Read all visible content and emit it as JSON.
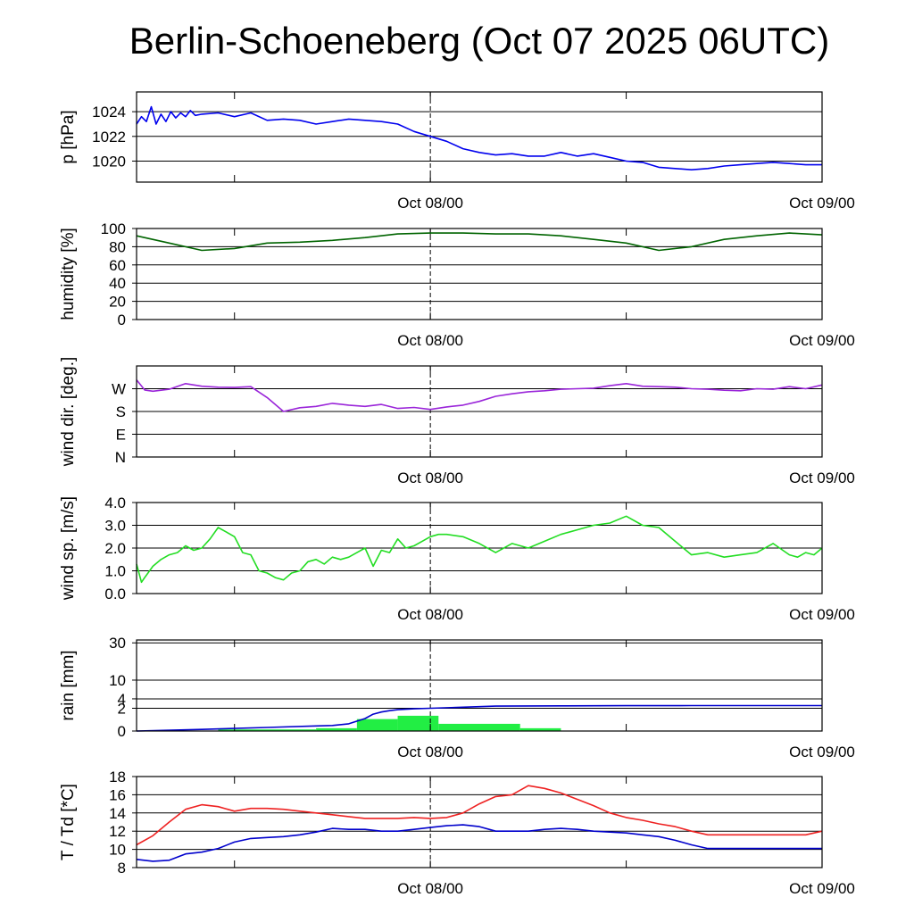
{
  "title": "Berlin-Schoeneberg (Oct 07 2025 06UTC)",
  "x_tick_labels": [
    "Oct 08/00",
    "Oct 09/00"
  ],
  "chart_data": [
    {
      "id": "pressure",
      "type": "line",
      "ylabel": "p [hPa]",
      "ylim": [
        1018.3,
        1025.6
      ],
      "yticks": [
        1020,
        1022,
        1024
      ],
      "ytick_labels": [
        "1020",
        "1022",
        "1024"
      ],
      "series": [
        {
          "name": "pressure",
          "color": "#0000ee",
          "x": [
            0,
            0.3,
            0.6,
            0.9,
            1.2,
            1.5,
            1.8,
            2.1,
            2.4,
            2.7,
            3.0,
            3.3,
            3.6,
            4,
            5,
            6,
            7,
            8,
            9,
            10,
            11,
            12,
            13,
            14,
            15,
            16,
            17,
            18,
            19,
            20,
            21,
            22,
            23,
            24,
            25,
            26,
            27,
            28,
            29,
            30,
            31,
            32,
            33,
            34,
            35,
            36,
            37,
            38,
            39,
            40,
            41,
            42
          ],
          "y": [
            1023.0,
            1023.6,
            1023.2,
            1024.4,
            1023.0,
            1023.8,
            1023.2,
            1024.0,
            1023.5,
            1023.9,
            1023.6,
            1024.1,
            1023.7,
            1023.8,
            1023.9,
            1023.6,
            1023.9,
            1023.3,
            1023.4,
            1023.3,
            1023.0,
            1023.2,
            1023.4,
            1023.3,
            1023.2,
            1023.0,
            1022.4,
            1022.0,
            1021.6,
            1021.0,
            1020.7,
            1020.5,
            1020.6,
            1020.4,
            1020.4,
            1020.7,
            1020.4,
            1020.6,
            1020.3,
            1020.0,
            1019.9,
            1019.5,
            1019.4,
            1019.3,
            1019.4,
            1019.6,
            1019.7,
            1019.8,
            1019.9,
            1019.8,
            1019.7,
            1019.7
          ]
        }
      ]
    },
    {
      "id": "humidity",
      "type": "line",
      "ylabel": "humidity [%]",
      "ylim": [
        0,
        100
      ],
      "yticks": [
        0,
        20,
        40,
        60,
        80,
        100
      ],
      "ytick_labels": [
        "0",
        "20",
        "40",
        "60",
        "80",
        "100"
      ],
      "series": [
        {
          "name": "humidity",
          "color": "#006400",
          "x": [
            0,
            2,
            4,
            6,
            8,
            10,
            12,
            14,
            16,
            18,
            20,
            22,
            24,
            26,
            28,
            30,
            32,
            34,
            36,
            38,
            40,
            42
          ],
          "y": [
            92,
            84,
            76,
            78,
            84,
            85,
            87,
            90,
            94,
            95,
            95,
            94,
            94,
            92,
            88,
            84,
            76,
            80,
            88,
            92,
            95,
            93
          ]
        }
      ]
    },
    {
      "id": "wind_direction",
      "type": "line",
      "ylabel": "wind dir. [deg.]",
      "ylim": [
        0,
        360
      ],
      "yticks": [
        0,
        90,
        180,
        270
      ],
      "ytick_labels": [
        "N",
        "E",
        "S",
        "W"
      ],
      "series": [
        {
          "name": "wind direction",
          "color": "#9a25d9",
          "x": [
            0,
            0.5,
            1,
            2,
            3,
            4,
            5,
            6,
            7,
            8,
            9,
            10,
            11,
            12,
            13,
            14,
            15,
            16,
            17,
            18,
            19,
            20,
            21,
            22,
            23,
            24,
            25,
            26,
            27,
            28,
            29,
            30,
            31,
            32,
            33,
            34,
            35,
            36,
            37,
            38,
            39,
            40,
            41,
            42
          ],
          "y": [
            305,
            265,
            260,
            268,
            290,
            280,
            276,
            275,
            278,
            235,
            180,
            195,
            200,
            212,
            205,
            200,
            208,
            192,
            196,
            188,
            198,
            205,
            220,
            240,
            250,
            258,
            262,
            268,
            270,
            272,
            282,
            290,
            280,
            278,
            276,
            270,
            268,
            264,
            262,
            270,
            268,
            278,
            270,
            285
          ]
        }
      ]
    },
    {
      "id": "wind_speed",
      "type": "line",
      "ylabel": "wind sp. [m/s]",
      "ylim": [
        0,
        4.0
      ],
      "yticks": [
        0,
        1,
        2,
        3,
        4
      ],
      "ytick_labels": [
        "0.0",
        "1.0",
        "2.0",
        "3.0",
        "4.0"
      ],
      "series": [
        {
          "name": "wind speed",
          "color": "#22dd22",
          "x": [
            0,
            0.3,
            0.5,
            0.8,
            1,
            1.5,
            2,
            2.5,
            3,
            3.5,
            4,
            4.5,
            5,
            5.5,
            6,
            6.5,
            7,
            7.5,
            8,
            8.5,
            9,
            9.5,
            10,
            10.5,
            11,
            11.5,
            12,
            12.5,
            13,
            13.5,
            14,
            14.5,
            15,
            15.5,
            16,
            16.5,
            17,
            17.5,
            18,
            18.5,
            19,
            20,
            21,
            22,
            23,
            24,
            25,
            26,
            27,
            28,
            29,
            30,
            31,
            32,
            33,
            34,
            35,
            36,
            37,
            38,
            39,
            40,
            40.5,
            41,
            41.5,
            42
          ],
          "y": [
            1.3,
            0.5,
            0.7,
            1.0,
            1.2,
            1.5,
            1.7,
            1.8,
            2.1,
            1.9,
            2.0,
            2.4,
            2.9,
            2.7,
            2.5,
            1.8,
            1.7,
            1.0,
            0.9,
            0.7,
            0.6,
            0.9,
            1.0,
            1.4,
            1.5,
            1.3,
            1.6,
            1.5,
            1.6,
            1.8,
            2.0,
            1.2,
            1.9,
            1.8,
            2.4,
            2.0,
            2.1,
            2.3,
            2.5,
            2.6,
            2.6,
            2.5,
            2.2,
            1.8,
            2.2,
            2.0,
            2.3,
            2.6,
            2.8,
            3.0,
            3.1,
            3.4,
            3.0,
            2.9,
            2.3,
            1.7,
            1.8,
            1.6,
            1.7,
            1.8,
            2.2,
            1.7,
            1.6,
            1.8,
            1.7,
            2.0
          ]
        }
      ]
    },
    {
      "id": "rain",
      "type": "bar+line",
      "ylabel": "rain [mm]",
      "scale": "sqrt",
      "ylim": [
        0,
        32
      ],
      "yticks": [
        0,
        2,
        4,
        10,
        30
      ],
      "ytick_labels": [
        "0",
        "2",
        "4",
        "10",
        "30"
      ],
      "bars": {
        "name": "hourly rain",
        "color": "#22ee44",
        "x_start": [
          5,
          11,
          13.5,
          16,
          18.5,
          21,
          23.5
        ],
        "x_end": [
          11,
          13.5,
          16,
          18.5,
          21,
          23.5,
          26
        ],
        "values": [
          0.01,
          0.03,
          0.55,
          0.9,
          0.2,
          0.2,
          0.03
        ]
      },
      "series": [
        {
          "name": "accumulated rain",
          "color": "#0000cc",
          "x": [
            0,
            4,
            8,
            11,
            12,
            13,
            14,
            14.5,
            15,
            15.5,
            16,
            17,
            18,
            20,
            22,
            26,
            30,
            34,
            38,
            42
          ],
          "y": [
            0,
            0.01,
            0.05,
            0.1,
            0.12,
            0.2,
            0.6,
            1.1,
            1.4,
            1.6,
            1.75,
            1.9,
            2.0,
            2.2,
            2.4,
            2.45,
            2.48,
            2.5,
            2.5,
            2.5
          ]
        }
      ]
    },
    {
      "id": "temperature",
      "type": "line",
      "ylabel": "T / Td [*C]",
      "ylim": [
        8,
        18
      ],
      "yticks": [
        8,
        10,
        12,
        14,
        16,
        18
      ],
      "ytick_labels": [
        "8",
        "10",
        "12",
        "14",
        "16",
        "18"
      ],
      "series": [
        {
          "name": "T",
          "color": "#ee2222",
          "x": [
            0,
            1,
            2,
            3,
            4,
            5,
            6,
            7,
            8,
            9,
            10,
            11,
            12,
            13,
            14,
            15,
            16,
            17,
            18,
            19,
            20,
            21,
            22,
            23,
            24,
            25,
            26,
            27,
            28,
            29,
            30,
            31,
            32,
            33,
            34,
            35,
            36,
            37,
            38,
            39,
            40,
            41,
            42
          ],
          "y": [
            10.5,
            11.5,
            13.0,
            14.4,
            14.9,
            14.7,
            14.2,
            14.5,
            14.5,
            14.4,
            14.2,
            14.0,
            13.8,
            13.6,
            13.4,
            13.4,
            13.4,
            13.5,
            13.4,
            13.5,
            14.0,
            15.0,
            15.8,
            16.0,
            17.0,
            16.7,
            16.2,
            15.5,
            14.8,
            14.0,
            13.5,
            13.2,
            12.8,
            12.5,
            12.0,
            11.6,
            11.6,
            11.6,
            11.6,
            11.6,
            11.6,
            11.6,
            12.0
          ]
        },
        {
          "name": "Td",
          "color": "#0000cc",
          "x": [
            0,
            1,
            2,
            3,
            4,
            5,
            6,
            7,
            8,
            9,
            10,
            11,
            12,
            13,
            14,
            15,
            16,
            17,
            18,
            19,
            20,
            21,
            22,
            23,
            24,
            25,
            26,
            27,
            28,
            29,
            30,
            31,
            32,
            33,
            34,
            35,
            36,
            37,
            38,
            39,
            40,
            41,
            42
          ],
          "y": [
            8.9,
            8.7,
            8.8,
            9.5,
            9.7,
            10.1,
            10.8,
            11.2,
            11.3,
            11.4,
            11.6,
            11.9,
            12.3,
            12.2,
            12.2,
            12.0,
            12.0,
            12.2,
            12.4,
            12.6,
            12.7,
            12.5,
            12.0,
            12.0,
            12.0,
            12.2,
            12.3,
            12.2,
            12.0,
            11.9,
            11.8,
            11.6,
            11.4,
            11.0,
            10.5,
            10.1,
            10.1,
            10.1,
            10.1,
            10.1,
            10.1,
            10.1,
            10.1
          ]
        }
      ]
    }
  ]
}
